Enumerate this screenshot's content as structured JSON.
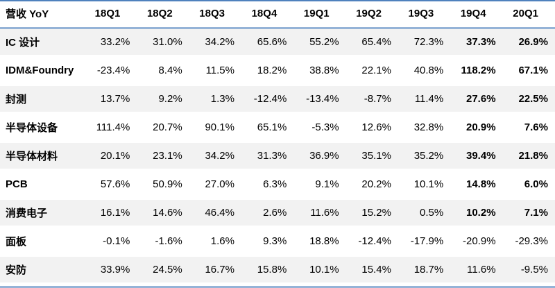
{
  "colors": {
    "top_border": "#4f81bd",
    "header_rule": "#95b3d7",
    "bottom_border": "#95b3d7",
    "row_stripe": "#f2f2f2",
    "text": "#000000"
  },
  "chart_data": {
    "type": "table",
    "title": "营收 YoY",
    "unit": "%",
    "columns": [
      "18Q1",
      "18Q2",
      "18Q3",
      "18Q4",
      "19Q1",
      "19Q2",
      "19Q3",
      "19Q4",
      "20Q1"
    ],
    "emphasized_columns": [
      "19Q4",
      "20Q1"
    ],
    "rows": [
      {
        "label": "IC 设计",
        "values": [
          "33.2%",
          "31.0%",
          "34.2%",
          "65.6%",
          "55.2%",
          "65.4%",
          "72.3%",
          "37.3%",
          "26.9%"
        ],
        "bold_last_two": true
      },
      {
        "label": "IDM&Foundry",
        "values": [
          "-23.4%",
          "8.4%",
          "11.5%",
          "18.2%",
          "38.8%",
          "22.1%",
          "40.8%",
          "118.2%",
          "67.1%"
        ],
        "bold_last_two": true
      },
      {
        "label": "封测",
        "values": [
          "13.7%",
          "9.2%",
          "1.3%",
          "-12.4%",
          "-13.4%",
          "-8.7%",
          "11.4%",
          "27.6%",
          "22.5%"
        ],
        "bold_last_two": true
      },
      {
        "label": "半导体设备",
        "values": [
          "111.4%",
          "20.7%",
          "90.1%",
          "65.1%",
          "-5.3%",
          "12.6%",
          "32.8%",
          "20.9%",
          "7.6%"
        ],
        "bold_last_two": true
      },
      {
        "label": "半导体材料",
        "values": [
          "20.1%",
          "23.1%",
          "34.2%",
          "31.3%",
          "36.9%",
          "35.1%",
          "35.2%",
          "39.4%",
          "21.8%"
        ],
        "bold_last_two": true
      },
      {
        "label": "PCB",
        "values": [
          "57.6%",
          "50.9%",
          "27.0%",
          "6.3%",
          "9.1%",
          "20.2%",
          "10.1%",
          "14.8%",
          "6.0%"
        ],
        "bold_last_two": true
      },
      {
        "label": "消费电子",
        "values": [
          "16.1%",
          "14.6%",
          "46.4%",
          "2.6%",
          "11.6%",
          "15.2%",
          "0.5%",
          "10.2%",
          "7.1%"
        ],
        "bold_last_two": true
      },
      {
        "label": "面板",
        "values": [
          "-0.1%",
          "-1.6%",
          "1.6%",
          "9.3%",
          "18.8%",
          "-12.4%",
          "-17.9%",
          "-20.9%",
          "-29.3%"
        ],
        "bold_last_two": false
      },
      {
        "label": "安防",
        "values": [
          "33.9%",
          "24.5%",
          "16.7%",
          "15.8%",
          "10.1%",
          "15.4%",
          "18.7%",
          "11.6%",
          "-9.5%"
        ],
        "bold_last_two": false
      }
    ]
  }
}
